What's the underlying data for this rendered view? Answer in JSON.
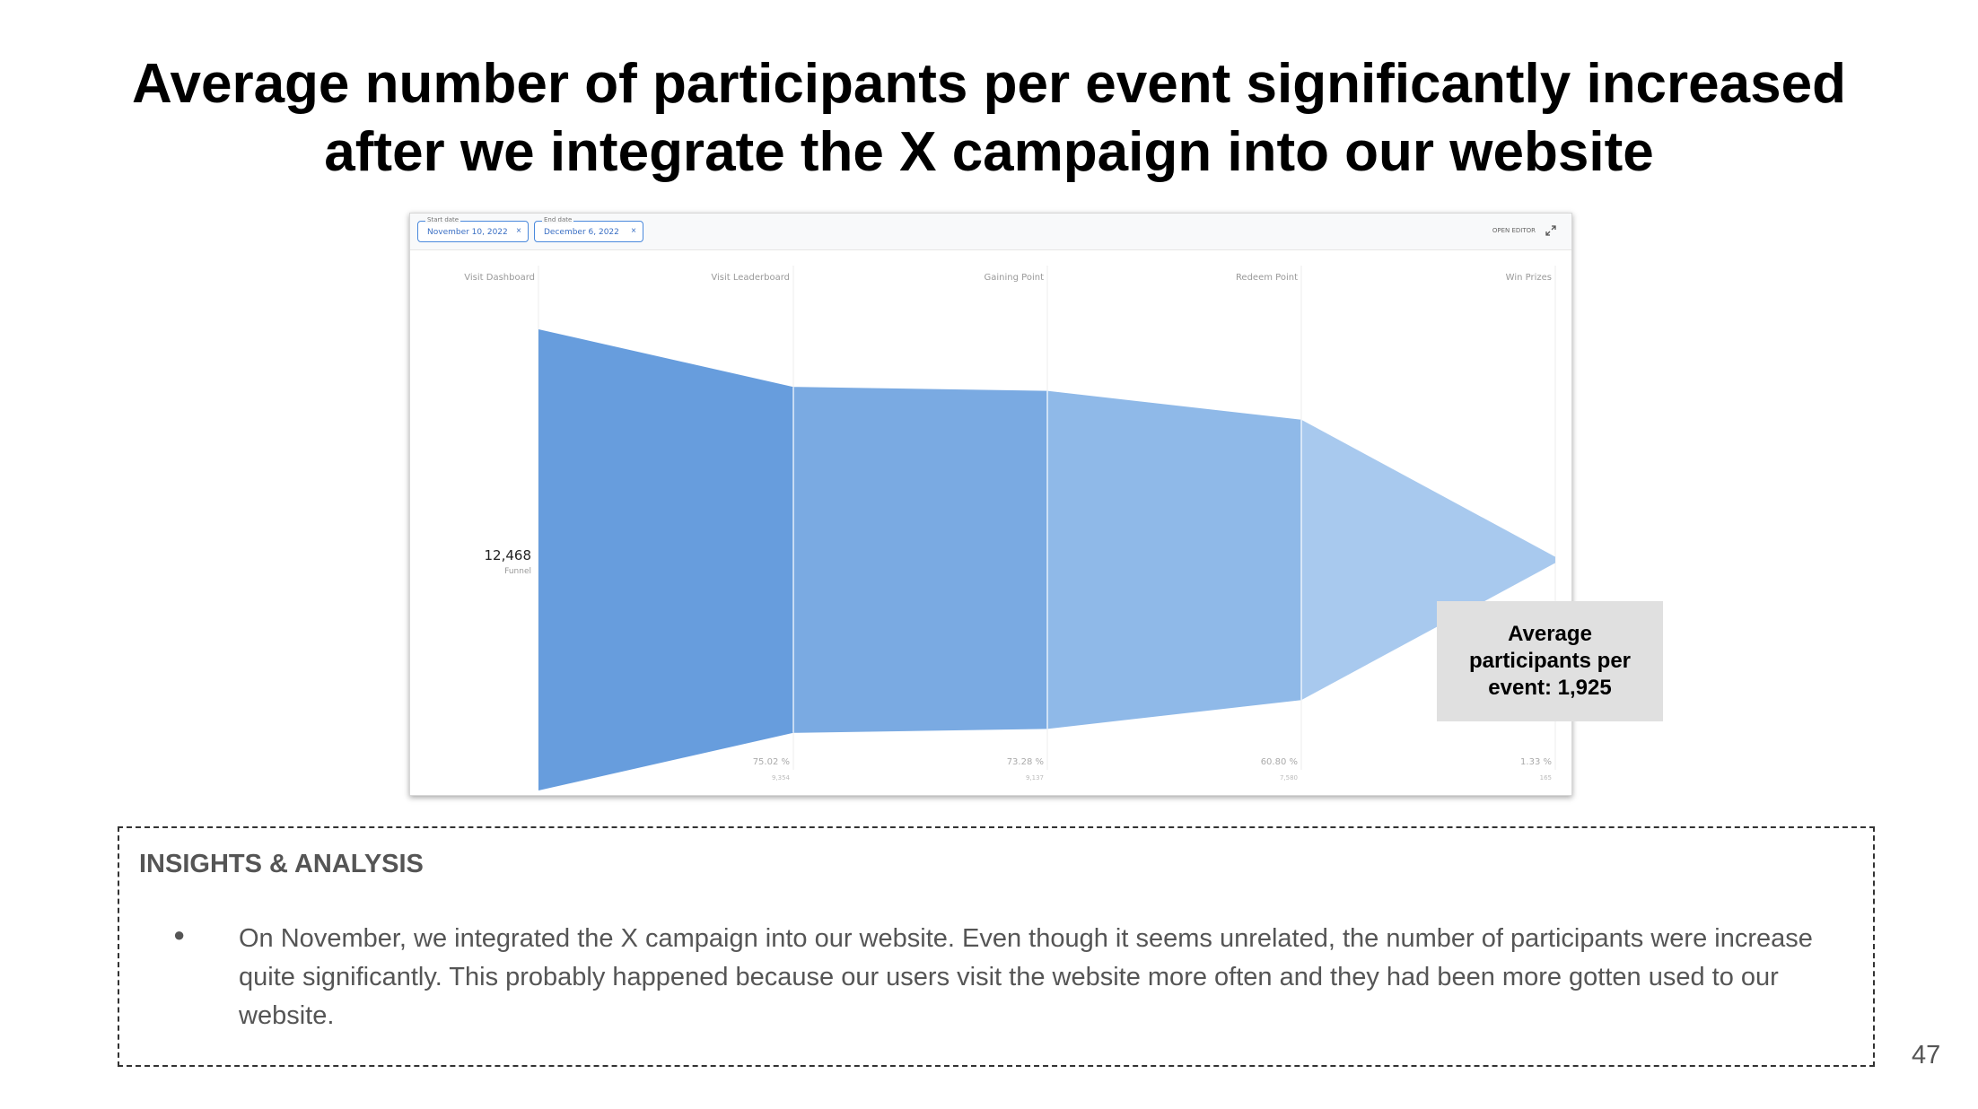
{
  "slide": {
    "title_line1": "Average number of participants per event significantly increased",
    "title_line2": "after we integrate the X campaign into our website",
    "page_number": "47"
  },
  "dashboard": {
    "start_date": {
      "label": "Start date",
      "value": "November 10, 2022"
    },
    "end_date": {
      "label": "End date",
      "value": "December 6, 2022"
    },
    "clear_glyph": "×",
    "open_editor_label": "OPEN EDITOR"
  },
  "chart_data": {
    "type": "funnel",
    "total": {
      "value": "12,468",
      "label": "Funnel"
    },
    "steps": [
      {
        "name": "Visit Dashboard",
        "percent": 100,
        "percent_label": "",
        "count_label": ""
      },
      {
        "name": "Visit Leaderboard",
        "percent": 75.02,
        "percent_label": "75.02 %",
        "count_label": "9,354"
      },
      {
        "name": "Gaining Point",
        "percent": 73.28,
        "percent_label": "73.28 %",
        "count_label": "9,137"
      },
      {
        "name": "Redeem Point",
        "percent": 60.8,
        "percent_label": "60.80 %",
        "count_label": "7,580"
      },
      {
        "name": "Win Prizes",
        "percent": 1.33,
        "percent_label": "1.33 %",
        "count_label": "165"
      }
    ],
    "colors": [
      "#679ddd",
      "#7aaae2",
      "#8fb9e8",
      "#a8c9ee"
    ],
    "grid": true
  },
  "callout": {
    "text": "Average participants per event: 1,925"
  },
  "insights": {
    "heading": "INSIGHTS & ANALYSIS",
    "bullet": "●",
    "items": [
      "On November, we integrated the X campaign into our website. Even though it seems unrelated, the number of participants were increase quite significantly. This probably happened because our users visit the website more often and they had been more gotten used to our website."
    ]
  }
}
